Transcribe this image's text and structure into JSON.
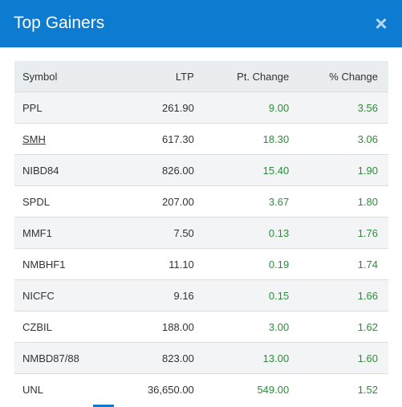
{
  "modal": {
    "title": "Top Gainers",
    "close_glyph": "×"
  },
  "table": {
    "headers": {
      "symbol": "Symbol",
      "ltp": "LTP",
      "pt_change": "Pt. Change",
      "pct_change": "% Change"
    },
    "rows": [
      {
        "symbol": "PPL",
        "ltp": "261.90",
        "pt": "9.00",
        "pct": "3.56"
      },
      {
        "symbol": "SMH",
        "ltp": "617.30",
        "pt": "18.30",
        "pct": "3.06"
      },
      {
        "symbol": "NIBD84",
        "ltp": "826.00",
        "pt": "15.40",
        "pct": "1.90"
      },
      {
        "symbol": "SPDL",
        "ltp": "207.00",
        "pt": "3.67",
        "pct": "1.80"
      },
      {
        "symbol": "MMF1",
        "ltp": "7.50",
        "pt": "0.13",
        "pct": "1.76"
      },
      {
        "symbol": "NMBHF1",
        "ltp": "11.10",
        "pt": "0.19",
        "pct": "1.74"
      },
      {
        "symbol": "NICFC",
        "ltp": "9.16",
        "pt": "0.15",
        "pct": "1.66"
      },
      {
        "symbol": "CZBIL",
        "ltp": "188.00",
        "pt": "3.00",
        "pct": "1.62"
      },
      {
        "symbol": "NMBD87/88",
        "ltp": "823.00",
        "pt": "13.00",
        "pct": "1.60"
      },
      {
        "symbol": "UNL",
        "ltp": "36,650.00",
        "pt": "549.00",
        "pct": "1.52"
      }
    ]
  },
  "colors": {
    "header_bg": "#0c7bd0",
    "positive": "#2e8b3a"
  }
}
